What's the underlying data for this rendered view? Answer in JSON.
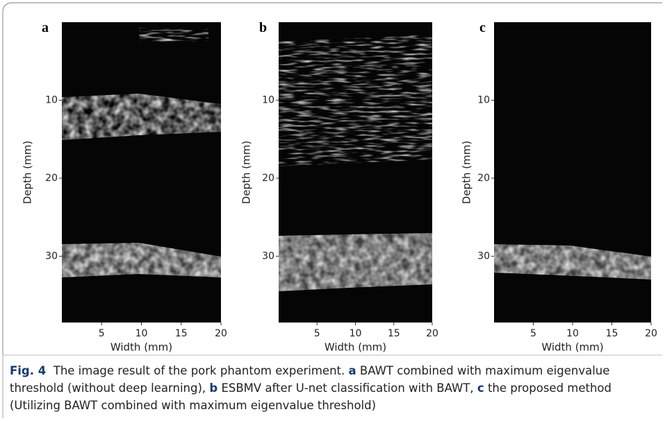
{
  "figure": {
    "panels": [
      {
        "label": "a",
        "ylabel": "Depth (mm)",
        "xlabel": "Width (mm)",
        "xlim": [
          0,
          20
        ],
        "ylim": [
          0,
          38.5
        ],
        "xticks": [
          5,
          10,
          15,
          20
        ],
        "yticks": [
          10,
          20,
          30
        ]
      },
      {
        "label": "b",
        "ylabel": "Depth (mm)",
        "xlabel": "Width (mm)",
        "xlim": [
          0,
          20
        ],
        "ylim": [
          0,
          38.5
        ],
        "xticks": [
          5,
          10,
          15,
          20
        ],
        "yticks": [
          10,
          20,
          30
        ]
      },
      {
        "label": "c",
        "ylabel": "Depth (mm)",
        "xlabel": "Width (mm)",
        "xlim": [
          0,
          20
        ],
        "ylim": [
          0,
          38.5
        ],
        "xticks": [
          5,
          10,
          15,
          20
        ],
        "yticks": [
          10,
          20,
          30
        ]
      }
    ],
    "caption": {
      "label": "Fig. 4",
      "text": "The image result of the pork phantom experiment.",
      "items": [
        {
          "key": "a",
          "text": "BAWT combined with maximum eigenvalue threshold (without deep learning),"
        },
        {
          "key": "b",
          "text": "ESBMV after U-net classification with BAWT,"
        },
        {
          "key": "c",
          "text": "the proposed method (Utilizing BAWT combined with maximum eigenvalue threshold)"
        }
      ]
    }
  }
}
